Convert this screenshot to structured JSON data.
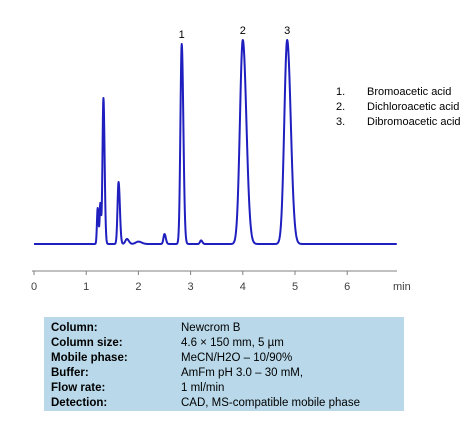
{
  "chart_data": {
    "type": "line",
    "xlabel": "min",
    "ylabel": "",
    "xlim": [
      0,
      7
    ],
    "xticks": [
      "0",
      "1",
      "2",
      "3",
      "4",
      "5",
      "6"
    ],
    "grid": false,
    "line_color": "#1f1fbf",
    "baseline": 0.02,
    "peaks": [
      {
        "t": 1.22,
        "h": 0.18,
        "w": 0.014
      },
      {
        "t": 1.27,
        "h": 0.2,
        "w": 0.012
      },
      {
        "t": 1.33,
        "h": 0.73,
        "w": 0.018
      },
      {
        "t": 1.62,
        "h": 0.31,
        "w": 0.02
      },
      {
        "t": 1.78,
        "h": 0.025,
        "w": 0.03
      },
      {
        "t": 2.0,
        "h": 0.012,
        "w": 0.05
      },
      {
        "t": 2.5,
        "h": 0.05,
        "w": 0.02
      },
      {
        "t": 2.83,
        "h": 1.0,
        "w": 0.025,
        "label": "1"
      },
      {
        "t": 3.2,
        "h": 0.018,
        "w": 0.02
      },
      {
        "t": 4.0,
        "h": 1.02,
        "w": 0.055,
        "label": "2"
      },
      {
        "t": 4.85,
        "h": 1.02,
        "w": 0.055,
        "label": "3"
      }
    ],
    "legend": [
      "Bromoacetic acid",
      "Dichloroacetic acid",
      "Dibromoacetic acid"
    ],
    "legend_placement": "top-right"
  },
  "legend_items": [
    {
      "num": "1.",
      "name": "Bromoacetic acid"
    },
    {
      "num": "2.",
      "name": "Dichloroacetic acid"
    },
    {
      "num": "3.",
      "name": "Dibromoacetic acid"
    }
  ],
  "conditions": [
    {
      "label": "Column:",
      "value": "Newcrom B"
    },
    {
      "label": "Column size:",
      "value": "4.6 × 150 mm, 5 µm"
    },
    {
      "label": "Mobile phase:",
      "value": "MeCN/H2O – 10/90%"
    },
    {
      "label": "Buffer:",
      "value": "AmFm pH 3.0  –  30 mM,"
    },
    {
      "label": "Flow rate:",
      "value": "1 ml/min"
    },
    {
      "label": "Detection:",
      "value": "CAD, MS-compatible mobile phase"
    }
  ],
  "panel_color": "#b9d9ea"
}
